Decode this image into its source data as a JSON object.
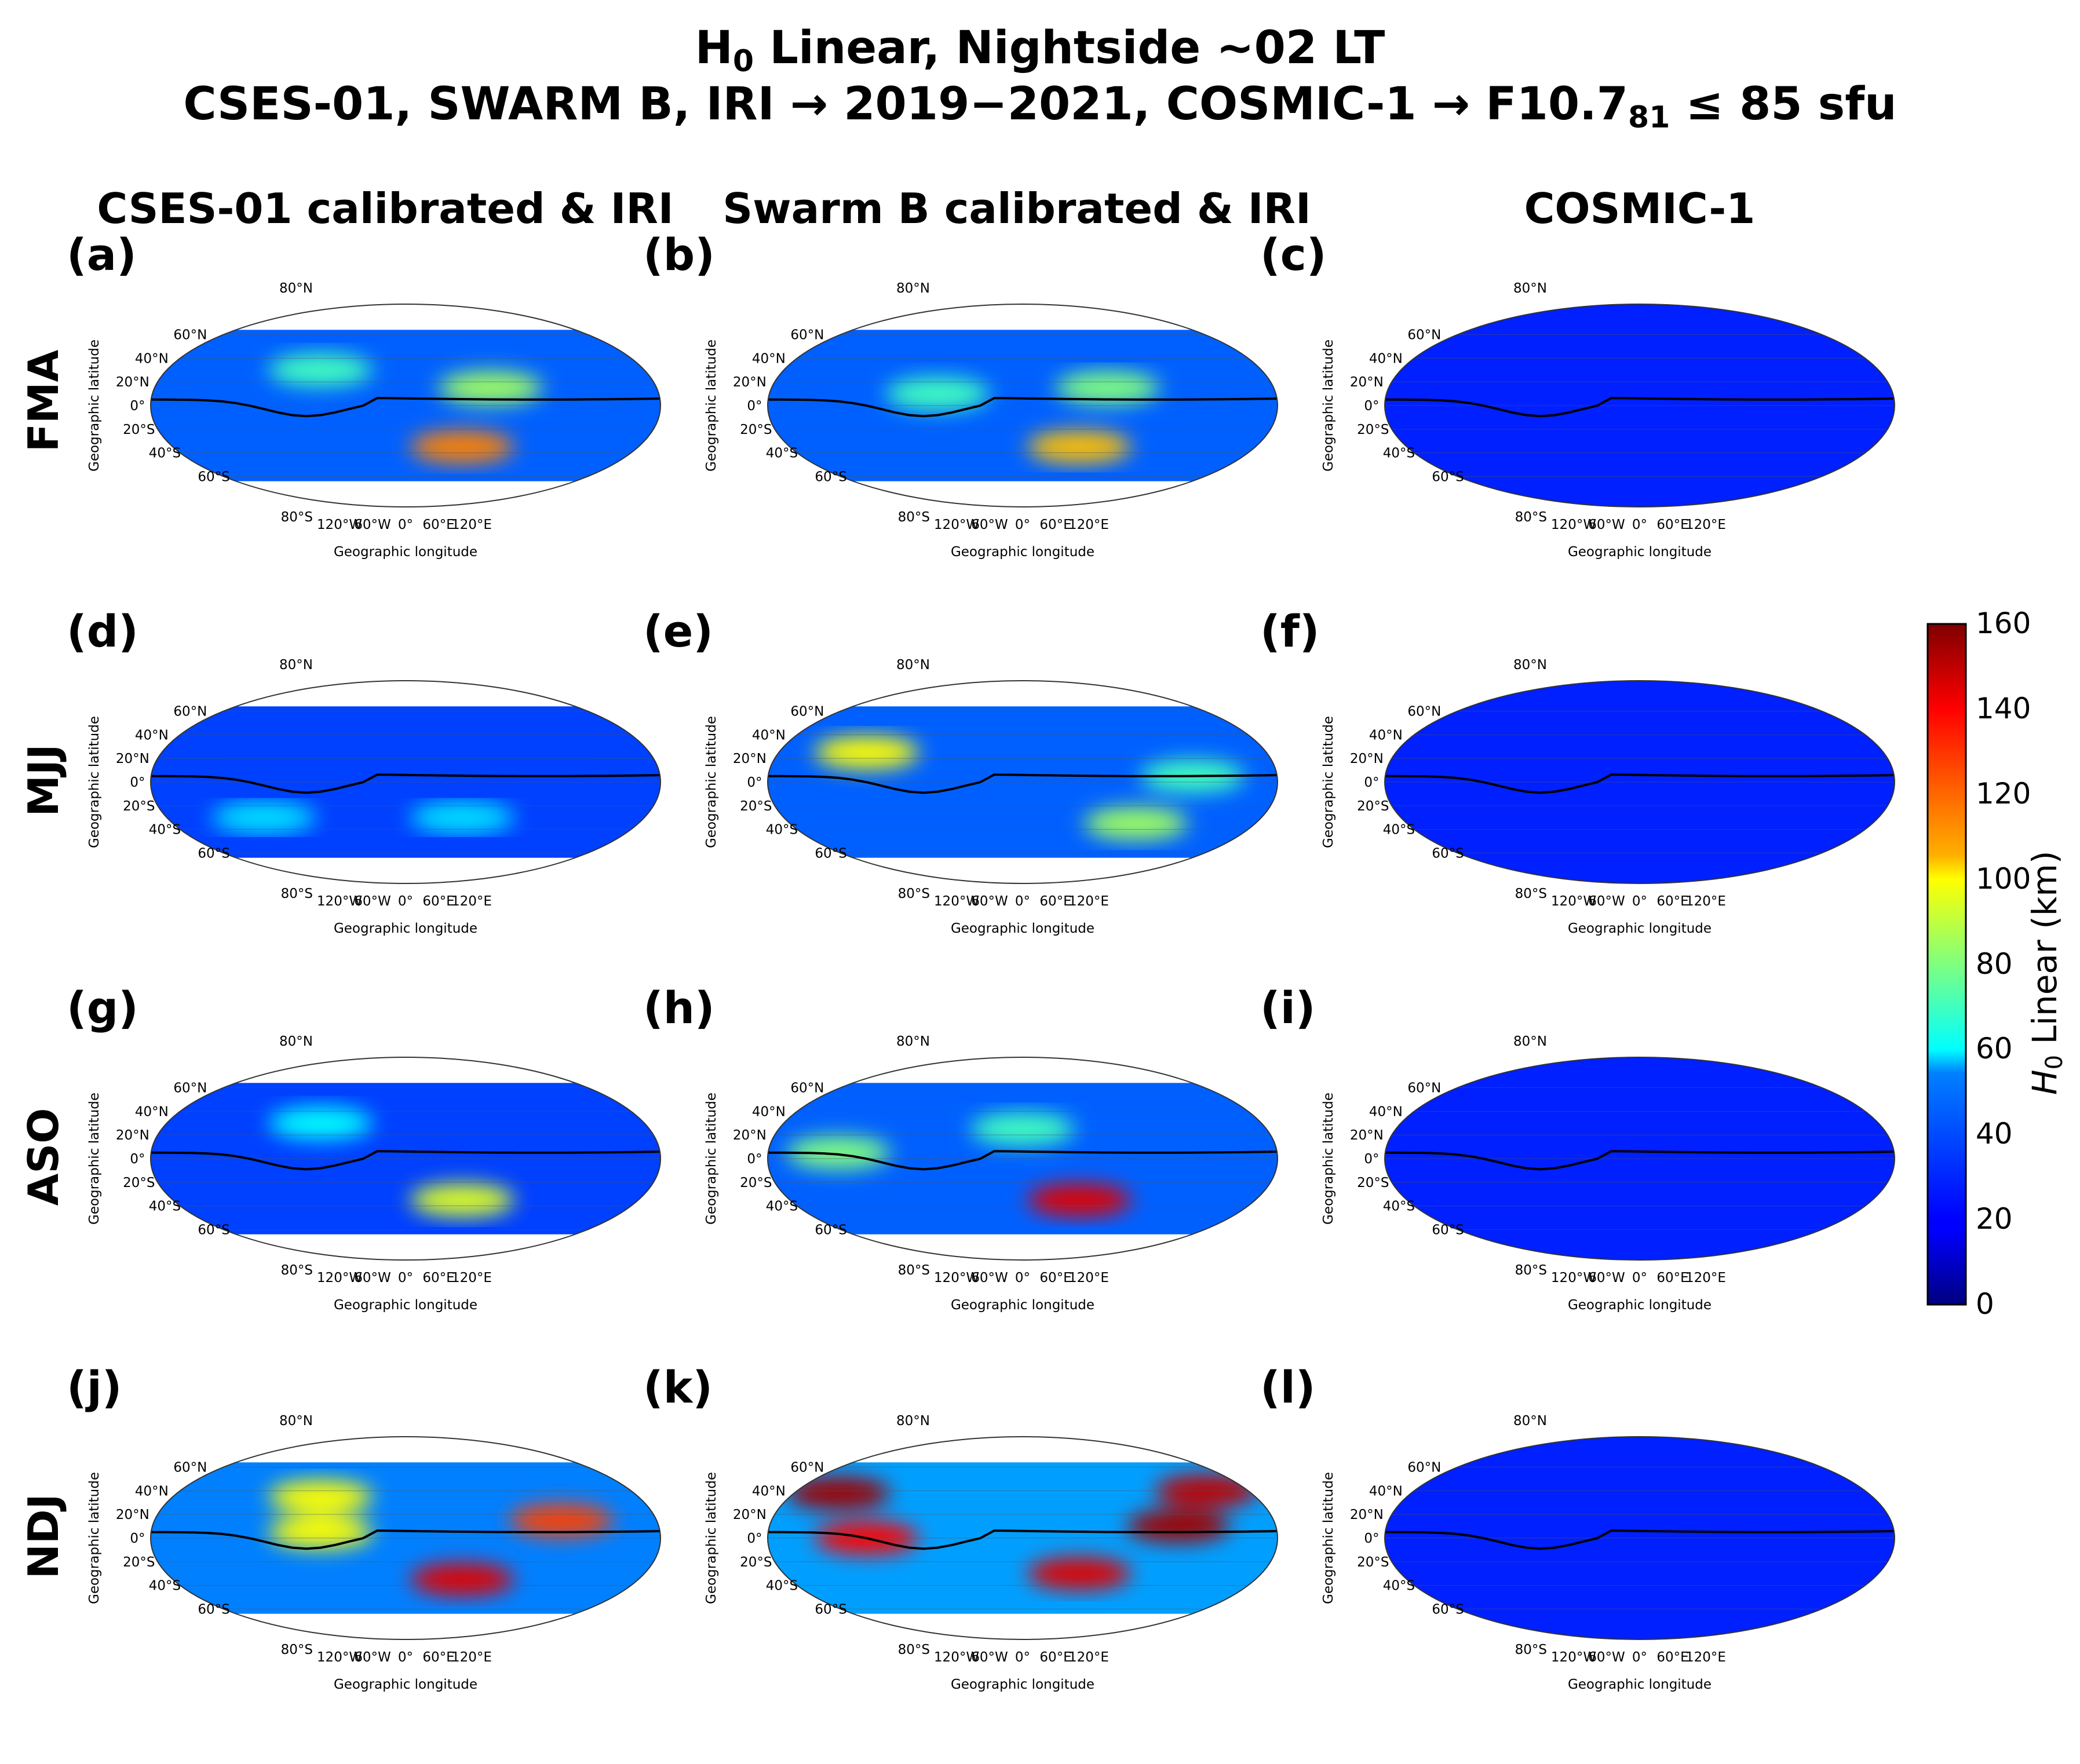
{
  "figure": {
    "title_line1_prefix": "H",
    "title_line1_sub": "0",
    "title_line1_suffix": " Linear, Nightside ~02 LT",
    "title_line2_prefix": "CSES-01, SWARM B, IRI → 2019−2021,  COSMIC-1 → F10.7",
    "title_line2_sub": "81",
    "title_line2_suffix": " ≤ 85 sfu",
    "columns": [
      "CSES-01 calibrated & IRI",
      "Swarm B calibrated & IRI",
      "COSMIC-1"
    ],
    "rows": [
      "FMA",
      "MJJ",
      "ASO",
      "NDJ"
    ],
    "panel_labels": [
      "(a)",
      "(b)",
      "(c)",
      "(d)",
      "(e)",
      "(f)",
      "(g)",
      "(h)",
      "(i)",
      "(j)",
      "(k)",
      "(l)"
    ],
    "colors": {
      "background": "#ffffff",
      "text": "#000000",
      "equator_line": "#000000"
    }
  },
  "chart_data": {
    "type": "heatmap",
    "title": "H0 Linear, Nightside ~02 LT",
    "projection": "Robinson",
    "xlabel": "Geographic longitude",
    "ylabel": "Geographic latitude",
    "x_ticks": [
      "120°W",
      "60°W",
      "0°",
      "60°E",
      "120°E"
    ],
    "y_ticks": [
      "80°N",
      "60°N",
      "40°N",
      "20°N",
      "0°",
      "20°S",
      "40°S",
      "60°S",
      "80°S"
    ],
    "colorbar": {
      "label": "H0 Linear (km)",
      "label_prefix": "H",
      "label_sub": "0",
      "label_suffix": " Linear (km)",
      "range": [
        0,
        160
      ],
      "ticks": [
        "160",
        "140",
        "120",
        "100",
        "80",
        "60",
        "40",
        "20",
        "0"
      ],
      "colormap": "jet"
    },
    "panels": [
      {
        "id": "a",
        "row": "FMA",
        "column": "CSES-01 calibrated & IRI",
        "background_km": 35,
        "max_km": 130,
        "hotspots": [
          {
            "lon": 40,
            "lat": -35,
            "km": 120
          },
          {
            "lon": -60,
            "lat": 30,
            "km": 70
          },
          {
            "lon": 60,
            "lat": 15,
            "km": 85
          }
        ]
      },
      {
        "id": "b",
        "row": "FMA",
        "column": "Swarm B calibrated & IRI",
        "background_km": 35,
        "max_km": 130,
        "hotspots": [
          {
            "lon": 40,
            "lat": -35,
            "km": 110
          },
          {
            "lon": -60,
            "lat": 10,
            "km": 70
          },
          {
            "lon": 60,
            "lat": 15,
            "km": 80
          }
        ]
      },
      {
        "id": "c",
        "row": "FMA",
        "column": "COSMIC-1",
        "background_km": 25,
        "max_km": 45,
        "hotspots": []
      },
      {
        "id": "d",
        "row": "MJJ",
        "column": "CSES-01 calibrated & IRI",
        "background_km": 30,
        "max_km": 80,
        "hotspots": [
          {
            "lon": 40,
            "lat": -30,
            "km": 55
          },
          {
            "lon": -100,
            "lat": -30,
            "km": 55
          }
        ]
      },
      {
        "id": "e",
        "row": "MJJ",
        "column": "Swarm B calibrated & IRI",
        "background_km": 35,
        "max_km": 110,
        "hotspots": [
          {
            "lon": -110,
            "lat": 25,
            "km": 100
          },
          {
            "lon": 80,
            "lat": -35,
            "km": 85
          },
          {
            "lon": 120,
            "lat": 5,
            "km": 70
          }
        ]
      },
      {
        "id": "f",
        "row": "MJJ",
        "column": "COSMIC-1",
        "background_km": 25,
        "max_km": 45,
        "hotspots": []
      },
      {
        "id": "g",
        "row": "ASO",
        "column": "CSES-01 calibrated & IRI",
        "background_km": 30,
        "max_km": 110,
        "hotspots": [
          {
            "lon": 40,
            "lat": -35,
            "km": 95
          },
          {
            "lon": -60,
            "lat": 30,
            "km": 60
          }
        ]
      },
      {
        "id": "h",
        "row": "ASO",
        "column": "Swarm B calibrated & IRI",
        "background_km": 35,
        "max_km": 150,
        "hotspots": [
          {
            "lon": 40,
            "lat": -35,
            "km": 145
          },
          {
            "lon": -130,
            "lat": 5,
            "km": 80
          },
          {
            "lon": 0,
            "lat": 25,
            "km": 70
          }
        ]
      },
      {
        "id": "i",
        "row": "ASO",
        "column": "COSMIC-1",
        "background_km": 25,
        "max_km": 45,
        "hotspots": []
      },
      {
        "id": "j",
        "row": "NDJ",
        "column": "CSES-01 calibrated & IRI",
        "background_km": 40,
        "max_km": 150,
        "hotspots": [
          {
            "lon": 40,
            "lat": -35,
            "km": 145
          },
          {
            "lon": 110,
            "lat": 15,
            "km": 130
          },
          {
            "lon": -60,
            "lat": 35,
            "km": 100
          },
          {
            "lon": -60,
            "lat": 5,
            "km": 100
          }
        ]
      },
      {
        "id": "k",
        "row": "NDJ",
        "column": "Swarm B calibrated & IRI",
        "background_km": 45,
        "max_km": 160,
        "hotspots": [
          {
            "lon": -130,
            "lat": 38,
            "km": 155
          },
          {
            "lon": 130,
            "lat": 40,
            "km": 150
          },
          {
            "lon": 110,
            "lat": 10,
            "km": 155
          },
          {
            "lon": 40,
            "lat": -30,
            "km": 145
          },
          {
            "lon": -110,
            "lat": 0,
            "km": 140
          }
        ]
      },
      {
        "id": "l",
        "row": "NDJ",
        "column": "COSMIC-1",
        "background_km": 25,
        "max_km": 45,
        "hotspots": []
      }
    ]
  }
}
